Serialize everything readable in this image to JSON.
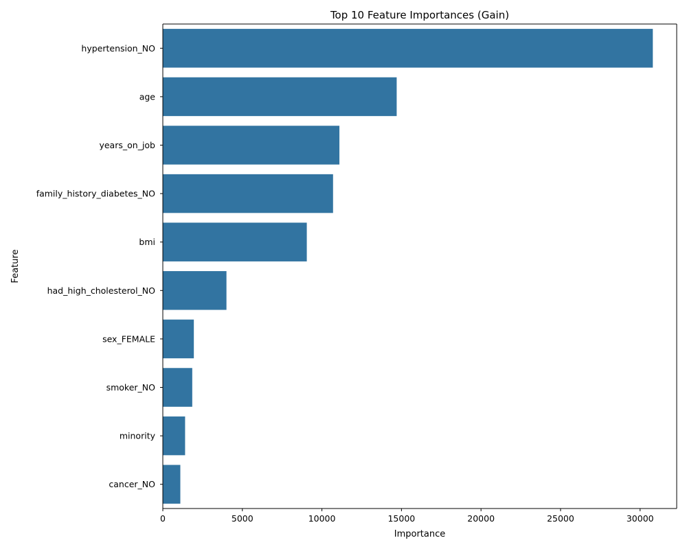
{
  "chart_data": {
    "type": "bar",
    "orientation": "horizontal",
    "title": "Top 10 Feature Importances (Gain)",
    "xlabel": "Importance",
    "ylabel": "Feature",
    "categories": [
      "hypertension_NO",
      "age",
      "years_on_job",
      "family_history_diabetes_NO",
      "bmi",
      "had_high_cholesterol_NO",
      "sex_FEMALE",
      "smoker_NO",
      "minority",
      "cancer_NO"
    ],
    "values": [
      30800,
      14700,
      11100,
      10700,
      9050,
      4000,
      1950,
      1850,
      1400,
      1100
    ],
    "xlim": [
      0,
      32300
    ],
    "xticks": [
      0,
      5000,
      10000,
      15000,
      20000,
      25000,
      30000
    ],
    "xtick_labels": [
      "0",
      "5000",
      "10000",
      "15000",
      "20000",
      "25000",
      "30000"
    ],
    "grid": false,
    "bar_color": "#3274a1"
  }
}
